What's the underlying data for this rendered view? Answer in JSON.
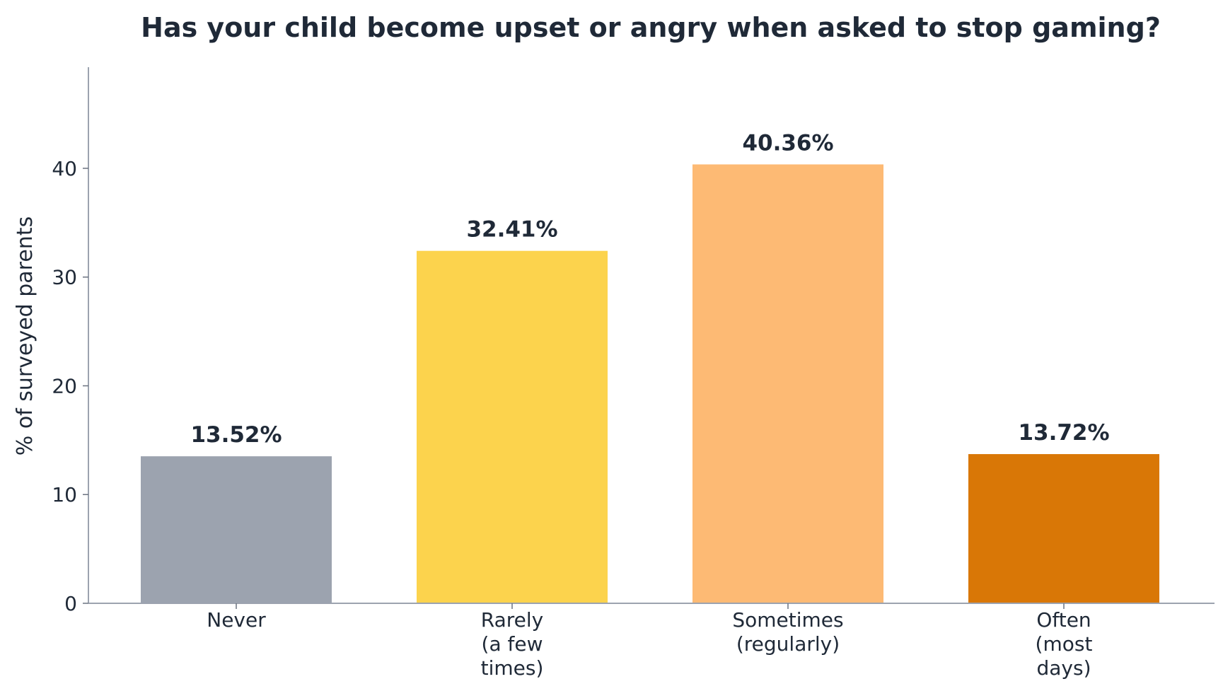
{
  "chart_data": {
    "type": "bar",
    "title": "Has your child become upset or angry when asked to stop gaming?",
    "xlabel": "",
    "ylabel": "% of surveyed parents",
    "categories": [
      [
        "Never"
      ],
      [
        "Rarely",
        "(a few",
        "times)"
      ],
      [
        "Sometimes",
        "(regularly)"
      ],
      [
        "Often",
        "(most",
        "days)"
      ]
    ],
    "values": [
      13.52,
      32.41,
      40.36,
      13.72
    ],
    "value_labels": [
      "13.52%",
      "32.41%",
      "40.36%",
      "13.72%"
    ],
    "colors": [
      "#9ca3af",
      "#fcd34d",
      "#fdba74",
      "#d97706"
    ],
    "ylim": [
      0,
      49.3
    ],
    "yticks": [
      0,
      10,
      20,
      30,
      40
    ],
    "grid": false,
    "legend": "none"
  }
}
